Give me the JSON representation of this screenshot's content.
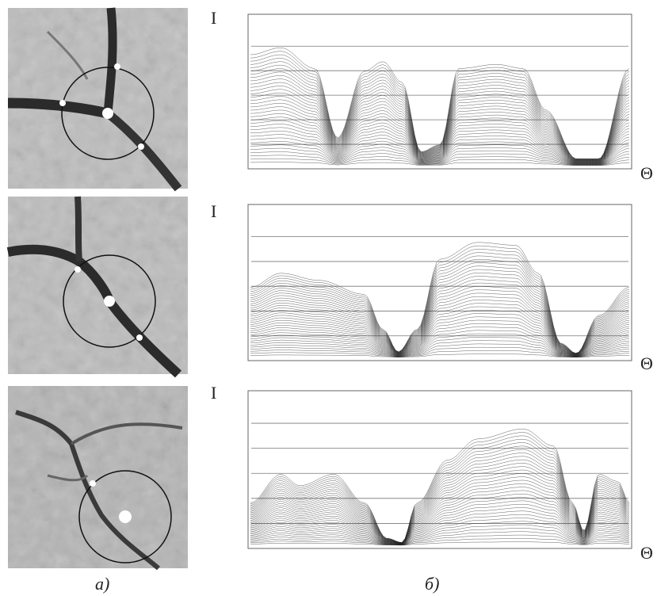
{
  "figure": {
    "panels": [
      {
        "y_label": "I",
        "x_label": "Θ"
      },
      {
        "y_label": "I",
        "x_label": "Θ"
      },
      {
        "y_label": "I",
        "x_label": "Θ"
      }
    ],
    "captions": [
      "а)",
      "б)"
    ]
  }
}
